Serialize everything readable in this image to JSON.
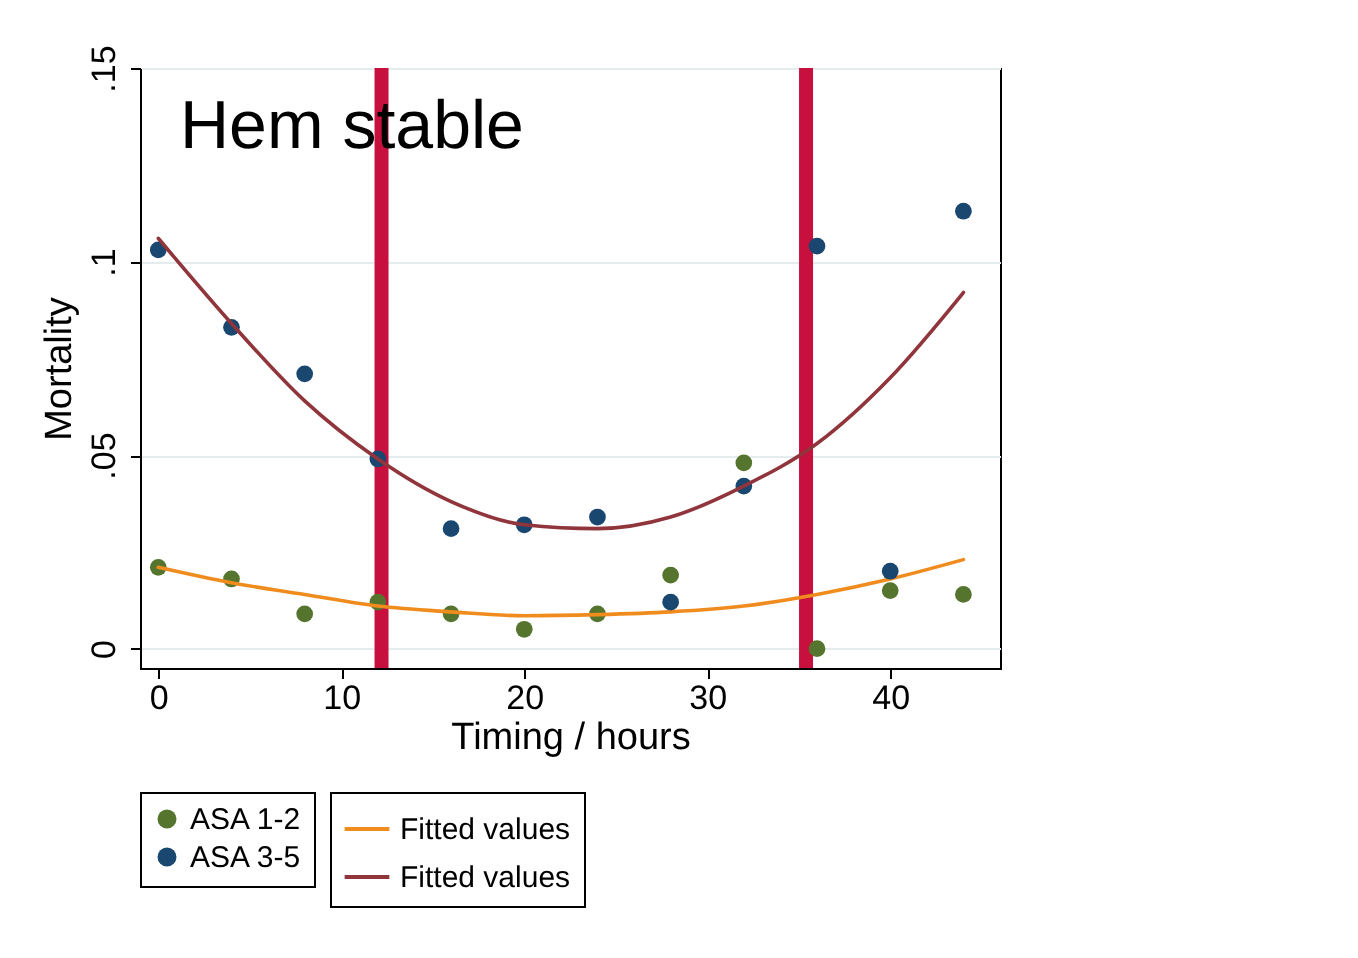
{
  "chart_data": {
    "type": "scatter",
    "xlabel": "Timing / hours",
    "ylabel": "Mortality",
    "annotations": [
      "Hem stable"
    ],
    "x": [
      0,
      4,
      8,
      12,
      16,
      20,
      24,
      28,
      32,
      36,
      40,
      44
    ],
    "xlim": [
      -1,
      46
    ],
    "xticks": [
      0,
      10,
      20,
      30,
      40
    ],
    "ylim": [
      -0.005,
      0.15
    ],
    "yticks": [
      {
        "value": 0,
        "label": "0"
      },
      {
        "value": 0.05,
        "label": ".05"
      },
      {
        "value": 0.1,
        "label": ".1"
      },
      {
        "value": 0.15,
        "label": ".15"
      }
    ],
    "grid": "y",
    "legend": "bottom",
    "series": [
      {
        "name": "ASA 1-2",
        "marker": "circle",
        "color": "#55752f",
        "values": [
          0.021,
          0.018,
          0.009,
          0.012,
          0.009,
          0.005,
          0.009,
          0.019,
          0.048,
          0,
          0.015,
          0.014
        ]
      },
      {
        "name": "Fitted values",
        "type": "line",
        "color": "#f08c1e",
        "values": [
          0.021,
          0.017,
          0.014,
          0.011,
          0.0095,
          0.0085,
          0.0088,
          0.0095,
          0.011,
          0.014,
          0.018,
          0.023
        ]
      },
      {
        "name": "ASA 3-5",
        "marker": "circle",
        "color": "#1a476f",
        "values": [
          0.103,
          0.083,
          0.071,
          0.049,
          0.031,
          0.032,
          0.034,
          0.012,
          0.042,
          0.104,
          0.02,
          0.113
        ]
      },
      {
        "name": "Fitted values",
        "type": "line",
        "color": "#90353b",
        "values": [
          0.106,
          0.084,
          0.064,
          0.049,
          0.038,
          0.032,
          0.031,
          0.034,
          0.042,
          0.053,
          0.07,
          0.092
        ]
      }
    ],
    "ref_lines": [
      {
        "axis": "x",
        "value": 12.2,
        "color": "#c8103e"
      },
      {
        "axis": "x",
        "value": 35.4,
        "color": "#c8103e"
      }
    ]
  }
}
